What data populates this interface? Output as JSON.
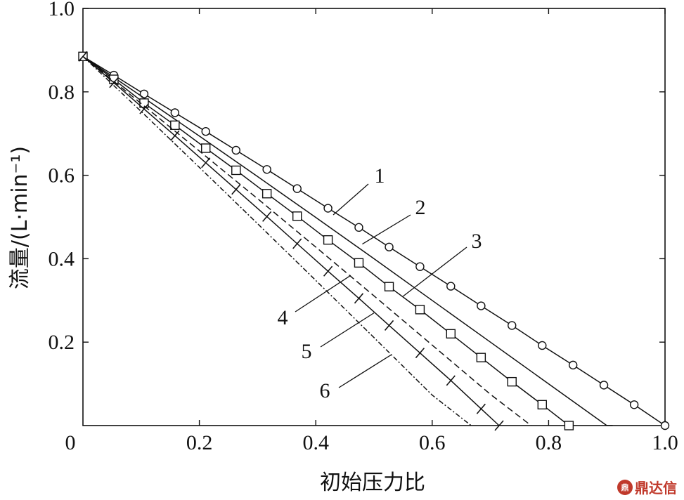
{
  "chart_data": {
    "type": "line",
    "xlabel": "初始压力比",
    "ylabel": "流量/(L·min⁻¹)",
    "xlim": [
      0,
      1.0
    ],
    "ylim": [
      0,
      1.0
    ],
    "x_ticks": [
      "0.2",
      "0.4",
      "0.6",
      "0.8",
      "1.0"
    ],
    "y_ticks": [
      "0.2",
      "0.4",
      "0.6",
      "0.8",
      "1.0"
    ],
    "origin_label": "0",
    "grid": false,
    "series": [
      {
        "name": "1",
        "marker": "circle",
        "line": "solid",
        "x": [
          0,
          0.053,
          0.105,
          0.158,
          0.211,
          0.263,
          0.316,
          0.368,
          0.421,
          0.474,
          0.526,
          0.579,
          0.632,
          0.684,
          0.737,
          0.789,
          0.842,
          0.895,
          0.947,
          1.0
        ],
        "y": [
          0.885,
          0.84,
          0.795,
          0.75,
          0.705,
          0.66,
          0.614,
          0.568,
          0.521,
          0.475,
          0.428,
          0.381,
          0.334,
          0.287,
          0.24,
          0.192,
          0.145,
          0.097,
          0.05,
          0.0
        ]
      },
      {
        "name": "2",
        "marker": "none",
        "line": "solid",
        "x": [
          0,
          0.1,
          0.2,
          0.3,
          0.4,
          0.5,
          0.6,
          0.7,
          0.8,
          0.9,
          0.91
        ],
        "y": [
          0.885,
          0.79,
          0.694,
          0.597,
          0.499,
          0.4,
          0.3,
          0.2,
          0.1,
          0.0,
          0.0
        ]
      },
      {
        "name": "3",
        "marker": "square",
        "line": "solid",
        "x": [
          0,
          0.053,
          0.105,
          0.158,
          0.211,
          0.263,
          0.316,
          0.368,
          0.421,
          0.474,
          0.526,
          0.579,
          0.632,
          0.684,
          0.737,
          0.789,
          0.835
        ],
        "y": [
          0.885,
          0.83,
          0.773,
          0.72,
          0.665,
          0.612,
          0.556,
          0.502,
          0.445,
          0.39,
          0.333,
          0.278,
          0.22,
          0.163,
          0.105,
          0.05,
          0.0
        ]
      },
      {
        "name": "4",
        "marker": "none",
        "line": "dashed",
        "x": [
          0,
          0.1,
          0.2,
          0.3,
          0.4,
          0.5,
          0.6,
          0.7,
          0.77
        ],
        "y": [
          0.885,
          0.772,
          0.658,
          0.544,
          0.428,
          0.311,
          0.193,
          0.075,
          0.0
        ]
      },
      {
        "name": "5",
        "marker": "cross",
        "line": "solid",
        "x": [
          0,
          0.053,
          0.105,
          0.158,
          0.211,
          0.263,
          0.316,
          0.368,
          0.421,
          0.474,
          0.526,
          0.579,
          0.632,
          0.684,
          0.715
        ],
        "y": [
          0.885,
          0.822,
          0.759,
          0.695,
          0.63,
          0.566,
          0.501,
          0.436,
          0.37,
          0.305,
          0.24,
          0.174,
          0.108,
          0.04,
          0.0
        ]
      },
      {
        "name": "6",
        "marker": "none",
        "line": "dashdot",
        "x": [
          0,
          0.1,
          0.2,
          0.3,
          0.4,
          0.5,
          0.6,
          0.667
        ],
        "y": [
          0.885,
          0.753,
          0.619,
          0.484,
          0.348,
          0.211,
          0.073,
          0.0
        ]
      }
    ],
    "curve_labels": [
      {
        "text": "1",
        "series": "1",
        "leader_to_x": 0.43,
        "leader_to_y": 0.505
      },
      {
        "text": "2",
        "series": "2",
        "leader_to_x": 0.48,
        "leader_to_y": 0.435
      },
      {
        "text": "3",
        "series": "3",
        "leader_to_x": 0.55,
        "leader_to_y": 0.31
      },
      {
        "text": "4",
        "series": "4",
        "leader_to_x": 0.46,
        "leader_to_y": 0.36
      },
      {
        "text": "5",
        "series": "5",
        "leader_to_x": 0.5,
        "leader_to_y": 0.27
      },
      {
        "text": "6",
        "series": "6",
        "leader_to_x": 0.53,
        "leader_to_y": 0.17
      }
    ]
  },
  "watermark": {
    "text": "鼎达信",
    "logo_text": "鼎"
  }
}
